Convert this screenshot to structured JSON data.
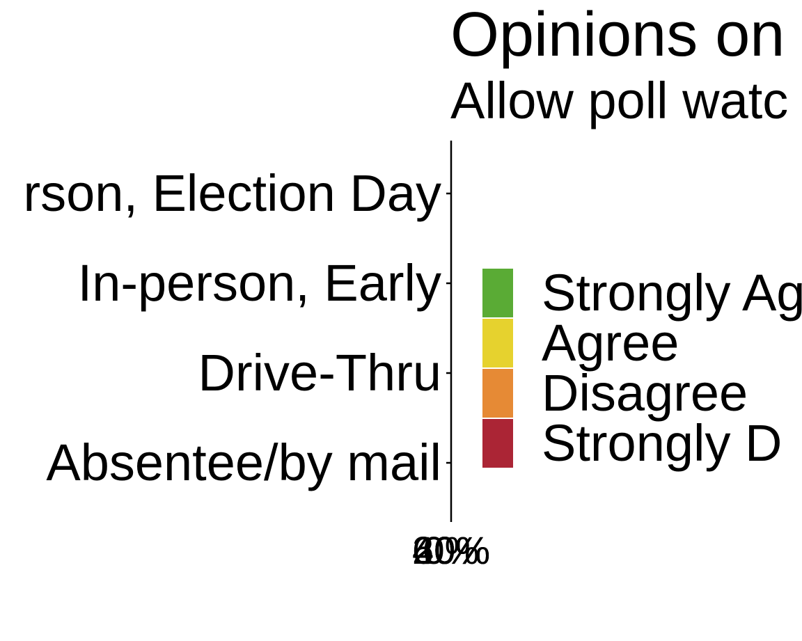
{
  "chart_data": {
    "type": "bar",
    "orientation": "horizontal",
    "stacked": true,
    "title": "Opinions on",
    "subtitle": "Allow poll watc",
    "xlabel": "",
    "ylabel": "",
    "categories": [
      "rson, Election Day",
      "In-person, Early",
      "Drive-Thru",
      "Absentee/by mail"
    ],
    "x_tick_labels": [
      "0%",
      "20%",
      "40%",
      "60%"
    ],
    "grid": false,
    "legend_position": "right",
    "series": [
      {
        "name": "Strongly Ag",
        "color": "#5aab35",
        "values": [
          0,
          0,
          0,
          0
        ]
      },
      {
        "name": "Agree",
        "color": "#e6d22e",
        "values": [
          0,
          0,
          0,
          0
        ]
      },
      {
        "name": "Disagree",
        "color": "#e68a35",
        "values": [
          0,
          0,
          0,
          0
        ]
      },
      {
        "name": "Strongly D",
        "color": "#ab2535",
        "values": [
          0,
          0,
          0,
          0
        ]
      }
    ]
  }
}
